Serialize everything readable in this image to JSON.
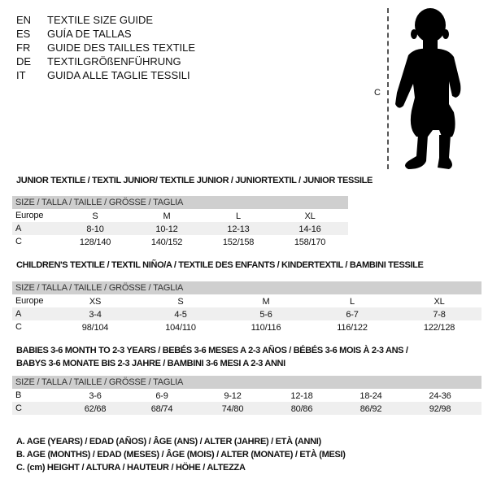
{
  "languages": [
    {
      "code": "EN",
      "title": "TEXTILE SIZE GUIDE"
    },
    {
      "code": "ES",
      "title": "GUÍA DE TALLAS"
    },
    {
      "code": "FR",
      "title": "GUIDE DES TAILLES TEXTILE"
    },
    {
      "code": "DE",
      "title": "TEXTILGRÖßENFÜHRUNG"
    },
    {
      "code": "IT",
      "title": "GUIDA ALLE TAGLIE TESSILI"
    }
  ],
  "figure": {
    "label": "C",
    "icon": "child-silhouette-icon"
  },
  "junior": {
    "title": "JUNIOR TEXTILE / TEXTIL JUNIOR/ TEXTILE JUNIOR / JUNIORTEXTIL / JUNIOR TESSILE",
    "header": "SIZE / TALLA / TAILLE / GRÖSSE / TAGLIA",
    "rows": [
      {
        "label": "Europe",
        "values": [
          "S",
          "M",
          "L",
          "XL"
        ]
      },
      {
        "label": "A",
        "values": [
          "8-10",
          "10-12",
          "12-13",
          "14-16"
        ]
      },
      {
        "label": "C",
        "values": [
          "128/140",
          "140/152",
          "152/158",
          "158/170"
        ]
      }
    ]
  },
  "children": {
    "title": "CHILDREN'S TEXTILE / TEXTIL NIÑO/A / TEXTILE DES ENFANTS / KINDERTEXTIL / BAMBINI TESSILE",
    "header": "SIZE / TALLA / TAILLE / GRÖSSE / TAGLIA",
    "rows": [
      {
        "label": "Europe",
        "values": [
          "XS",
          "S",
          "M",
          "L",
          "XL"
        ]
      },
      {
        "label": "A",
        "values": [
          "3-4",
          "4-5",
          "5-6",
          "6-7",
          "7-8"
        ]
      },
      {
        "label": "C",
        "values": [
          "98/104",
          "104/110",
          "110/116",
          "116/122",
          "122/128"
        ]
      }
    ]
  },
  "babies": {
    "title_line1": "BABIES 3-6 MONTH TO 2-3 YEARS / BEBÉS 3-6 MESES A 2-3 AÑOS / BÉBÉS 3-6 MOIS À 2-3 ANS /",
    "title_line2": "BABYS 3-6 MONATE BIS 2-3 JAHRE / BAMBINI 3-6 MESI A 2-3 ANNI",
    "header": "SIZE / TALLA / TAILLE / GRÖSSE / TAGLIA",
    "rows": [
      {
        "label": "B",
        "values": [
          "3-6",
          "6-9",
          "9-12",
          "12-18",
          "18-24",
          "24-36"
        ]
      },
      {
        "label": "C",
        "values": [
          "62/68",
          "68/74",
          "74/80",
          "80/86",
          "86/92",
          "92/98"
        ]
      }
    ]
  },
  "legend": [
    "A. AGE (YEARS) / EDAD (AÑOS) / ÂGE (ANS) / ALTER (JAHRE) / ETÀ (ANNI)",
    "B. AGE (MONTHS) / EDAD (MESES) / ÂGE (MOIS) / ALTER (MONATE) / ETÀ (MESI)",
    "C. (cm) HEIGHT / ALTURA / HAUTEUR / HÖHE / ALTEZZA"
  ]
}
